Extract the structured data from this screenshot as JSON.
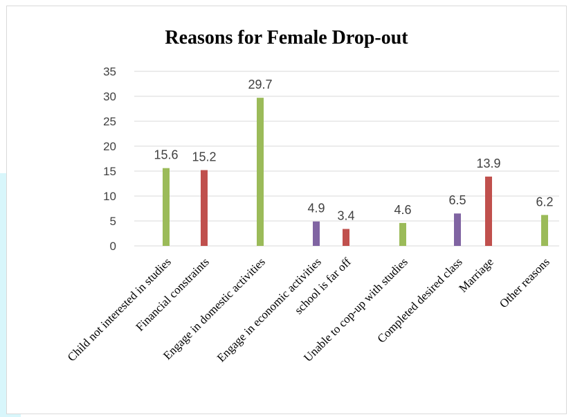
{
  "chart_data": {
    "type": "bar",
    "title": "Reasons for Female Drop-out",
    "xlabel": "",
    "ylabel": "",
    "ylim": [
      0,
      35
    ],
    "yticks": [
      0,
      5,
      10,
      15,
      20,
      25,
      30,
      35
    ],
    "grid": true,
    "legend": "none",
    "categories": [
      "Child not interested in studies",
      "Financial constraints",
      "Engage in domestic activities",
      "Engage in economic activities",
      "school is far off",
      "Unable to cop-up with studies",
      "Completed desired class",
      "Marriage",
      "Other reasons"
    ],
    "values": [
      15.6,
      15.2,
      29.7,
      4.9,
      3.4,
      4.6,
      6.5,
      13.9,
      6.2
    ],
    "data_labels": [
      "15.6",
      "15.2",
      "29.7",
      "4.9",
      "3.4",
      "4.6",
      "6.5",
      "13.9",
      "6.2"
    ],
    "bar_colors": [
      "#9bbb59",
      "#c0504d",
      "#9bbb59",
      "#8064a2",
      "#c0504d",
      "#9bbb59",
      "#8064a2",
      "#c0504d",
      "#9bbb59"
    ],
    "gridline_color": "#d9d9d9",
    "axis_color": "#d9d9d9"
  }
}
